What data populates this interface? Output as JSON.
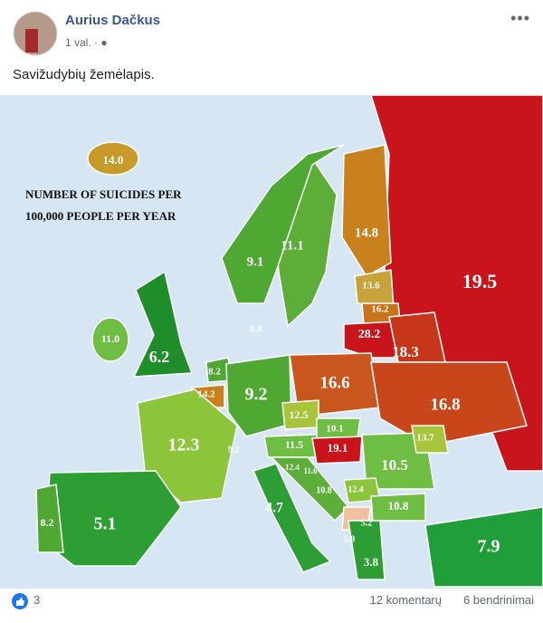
{
  "post": {
    "author": "Aurius Dačkus",
    "time": "1 val.",
    "text": "Savižudybių žemėlapis."
  },
  "map": {
    "title_lines": [
      "NUMBER OF SUICIDES PER",
      "100,000 PEOPLE PER YEAR"
    ],
    "labels": [
      "14.0",
      "9.1",
      "11.1",
      "14.8",
      "19.5",
      "13.6",
      "16.2",
      "11.0",
      "6.2",
      "8.8",
      "28.2",
      "18.3",
      "8.2",
      "14.2",
      "9.2",
      "16.6",
      "16.8",
      "12.5",
      "10.1",
      "12.3",
      "9.2",
      "11.5",
      "19.1",
      "13.7",
      "10.5",
      "12.4",
      "11.6",
      "10.8",
      "12.4",
      "10.8",
      "4.7",
      "8.2",
      "5.1",
      "5.2",
      "5.9",
      "3.8",
      "7.9"
    ]
  },
  "footer": {
    "reactions": "3",
    "comments": "12 komentarų",
    "shares": "6 bendrinimai"
  }
}
